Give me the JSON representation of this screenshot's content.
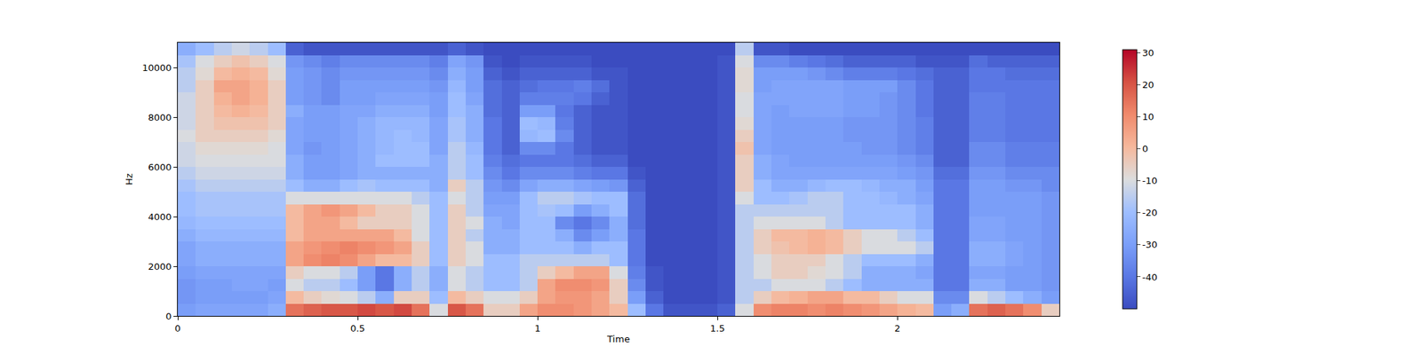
{
  "chart_data": {
    "type": "heatmap",
    "x_label": "Time",
    "y_label": "Hz",
    "xlim": [
      0,
      2.45
    ],
    "xticks": [
      0,
      0.5,
      1,
      1.5,
      2
    ],
    "ylim": [
      0,
      11000
    ],
    "yticks": [
      0,
      2000,
      4000,
      6000,
      8000,
      10000
    ],
    "zlim": [
      -50,
      31
    ],
    "zticks": [
      -40,
      -30,
      -20,
      -10,
      0,
      10,
      20,
      30
    ],
    "x": [
      0.025,
      0.075,
      0.125,
      0.175,
      0.225,
      0.275,
      0.325,
      0.375,
      0.425,
      0.475,
      0.525,
      0.575,
      0.625,
      0.675,
      0.725,
      0.775,
      0.825,
      0.875,
      0.925,
      0.975,
      1.025,
      1.075,
      1.125,
      1.175,
      1.225,
      1.275,
      1.325,
      1.375,
      1.425,
      1.475,
      1.525,
      1.575,
      1.625,
      1.675,
      1.725,
      1.775,
      1.825,
      1.875,
      1.925,
      1.975,
      2.025,
      2.075,
      2.125,
      2.175,
      2.225,
      2.275,
      2.325,
      2.375,
      2.425
    ],
    "y": [
      250,
      750,
      1250,
      1750,
      2250,
      2750,
      3250,
      3750,
      4250,
      4750,
      5250,
      5750,
      6250,
      6750,
      7250,
      7750,
      8250,
      8750,
      9250,
      9750,
      10250,
      10750
    ],
    "z": [
      [
        -30,
        -28,
        -28,
        -28,
        -28,
        -25,
        15,
        18,
        20,
        20,
        22,
        20,
        22,
        15,
        -10,
        20,
        15,
        -5,
        -5,
        5,
        10,
        10,
        8,
        5,
        0,
        -20,
        -40,
        -48,
        -48,
        -48,
        -45,
        -10,
        10,
        12,
        12,
        10,
        12,
        10,
        8,
        5,
        2,
        0,
        -30,
        -25,
        15,
        18,
        15,
        10,
        -5
      ],
      [
        -32,
        -30,
        -30,
        -30,
        -30,
        -28,
        0,
        -5,
        -8,
        -10,
        -15,
        -25,
        -5,
        -5,
        -20,
        0,
        -5,
        -10,
        -10,
        -5,
        5,
        8,
        8,
        5,
        -5,
        -30,
        -45,
        -50,
        -50,
        -50,
        -48,
        -15,
        -5,
        0,
        2,
        5,
        5,
        0,
        0,
        -5,
        -10,
        -10,
        -35,
        -35,
        -10,
        -15,
        -20,
        -25,
        -30
      ],
      [
        -32,
        -30,
        -30,
        -28,
        -28,
        -30,
        -10,
        -15,
        -15,
        -20,
        -30,
        -40,
        -25,
        -15,
        -25,
        -10,
        -15,
        -20,
        -20,
        -15,
        5,
        10,
        10,
        8,
        -5,
        -35,
        -48,
        -50,
        -50,
        -50,
        -48,
        -15,
        -15,
        -10,
        -10,
        -10,
        -15,
        -20,
        -25,
        -25,
        -25,
        -25,
        -40,
        -40,
        -25,
        -25,
        -30,
        -30,
        -32
      ],
      [
        -30,
        -28,
        -28,
        -28,
        -28,
        -28,
        -5,
        -10,
        -10,
        -15,
        -30,
        -40,
        -25,
        -15,
        -25,
        -10,
        -15,
        -20,
        -20,
        -15,
        -5,
        0,
        5,
        5,
        -10,
        -38,
        -48,
        -50,
        -50,
        -50,
        -48,
        -15,
        -10,
        -5,
        -5,
        -8,
        -10,
        -15,
        -25,
        -25,
        -25,
        -28,
        -40,
        -40,
        -28,
        -28,
        -30,
        -30,
        -32
      ],
      [
        -28,
        -25,
        -25,
        -25,
        -25,
        -25,
        5,
        10,
        12,
        10,
        5,
        0,
        0,
        -5,
        -20,
        -5,
        -10,
        -20,
        -20,
        -15,
        -15,
        -15,
        -15,
        -15,
        -20,
        -40,
        -50,
        -50,
        -50,
        -50,
        -48,
        -15,
        -10,
        -5,
        -5,
        -5,
        -10,
        -15,
        -20,
        -20,
        -20,
        -25,
        -40,
        -40,
        -25,
        -25,
        -28,
        -30,
        -32
      ],
      [
        -28,
        -25,
        -25,
        -25,
        -25,
        -25,
        5,
        8,
        10,
        12,
        10,
        8,
        5,
        -5,
        -20,
        -5,
        -10,
        -25,
        -25,
        -20,
        -20,
        -20,
        -25,
        -20,
        -20,
        -40,
        -50,
        -50,
        -50,
        -50,
        -48,
        -15,
        -5,
        -2,
        0,
        2,
        0,
        -5,
        -10,
        -10,
        -10,
        -15,
        -40,
        -40,
        -25,
        -25,
        -28,
        -30,
        -32
      ],
      [
        -25,
        -22,
        -22,
        -22,
        -22,
        -22,
        0,
        5,
        5,
        5,
        5,
        5,
        0,
        -10,
        -20,
        -5,
        -15,
        -25,
        -25,
        -20,
        -20,
        -25,
        -35,
        -30,
        -25,
        -40,
        -50,
        -50,
        -50,
        -50,
        -48,
        -15,
        -5,
        0,
        0,
        2,
        0,
        -5,
        -10,
        -10,
        -15,
        -20,
        -40,
        -40,
        -28,
        -28,
        -30,
        -30,
        -32
      ],
      [
        -22,
        -20,
        -20,
        -20,
        -20,
        -20,
        0,
        5,
        5,
        0,
        -5,
        -5,
        -5,
        -10,
        -20,
        -5,
        -10,
        -25,
        -28,
        -20,
        -20,
        -35,
        -40,
        -35,
        -25,
        -42,
        -50,
        -50,
        -50,
        -50,
        -48,
        -15,
        -10,
        -10,
        -10,
        -10,
        -15,
        -20,
        -20,
        -20,
        -20,
        -25,
        -40,
        -40,
        -28,
        -28,
        -30,
        -30,
        -32
      ],
      [
        -20,
        -18,
        -18,
        -18,
        -18,
        -18,
        0,
        5,
        8,
        5,
        0,
        -5,
        -5,
        -10,
        -20,
        -5,
        -15,
        -28,
        -28,
        -20,
        -18,
        -20,
        -30,
        -25,
        -20,
        -42,
        -50,
        -50,
        -50,
        -50,
        -48,
        -15,
        -15,
        -15,
        -15,
        -15,
        -15,
        -20,
        -20,
        -20,
        -20,
        -25,
        -40,
        -40,
        -30,
        -30,
        -30,
        -30,
        -32
      ],
      [
        -20,
        -18,
        -18,
        -18,
        -18,
        -18,
        -10,
        -10,
        -10,
        -10,
        -10,
        -10,
        -10,
        -15,
        -20,
        -10,
        -15,
        -30,
        -30,
        -20,
        -15,
        -15,
        -18,
        -20,
        -20,
        -42,
        -50,
        -50,
        -50,
        -50,
        -48,
        -10,
        -20,
        -20,
        -18,
        -15,
        -15,
        -20,
        -20,
        -22,
        -25,
        -28,
        -40,
        -40,
        -30,
        -30,
        -30,
        -30,
        -32
      ],
      [
        -18,
        -15,
        -15,
        -15,
        -15,
        -15,
        -20,
        -25,
        -25,
        -20,
        -18,
        -20,
        -20,
        -20,
        -25,
        -5,
        -15,
        -32,
        -35,
        -28,
        -25,
        -25,
        -28,
        -30,
        -32,
        -45,
        -50,
        -50,
        -50,
        -50,
        -48,
        -5,
        -20,
        -25,
        -25,
        -22,
        -20,
        -20,
        -22,
        -25,
        -25,
        -30,
        -40,
        -40,
        -30,
        -30,
        -32,
        -32,
        -35
      ],
      [
        -15,
        -12,
        -12,
        -12,
        -12,
        -12,
        -25,
        -30,
        -30,
        -28,
        -25,
        -25,
        -25,
        -25,
        -25,
        -15,
        -20,
        -35,
        -40,
        -35,
        -35,
        -35,
        -38,
        -40,
        -40,
        -48,
        -50,
        -50,
        -50,
        -50,
        -48,
        -5,
        -25,
        -28,
        -28,
        -28,
        -28,
        -28,
        -28,
        -28,
        -30,
        -32,
        -42,
        -42,
        -32,
        -32,
        -35,
        -35,
        -35
      ],
      [
        -12,
        -10,
        -10,
        -10,
        -10,
        -10,
        -25,
        -30,
        -30,
        -28,
        -25,
        -20,
        -20,
        -20,
        -25,
        -15,
        -20,
        -38,
        -42,
        -40,
        -40,
        -40,
        -42,
        -45,
        -45,
        -50,
        -50,
        -50,
        -50,
        -50,
        -48,
        -5,
        -25,
        -28,
        -30,
        -30,
        -30,
        -30,
        -30,
        -30,
        -32,
        -35,
        -45,
        -45,
        -35,
        -35,
        -38,
        -38,
        -38
      ],
      [
        -12,
        -8,
        -8,
        -8,
        -8,
        -10,
        -28,
        -32,
        -30,
        -28,
        -25,
        -22,
        -20,
        -20,
        -28,
        -15,
        -22,
        -40,
        -45,
        -35,
        -35,
        -40,
        -45,
        -48,
        -48,
        -50,
        -50,
        -50,
        -50,
        -50,
        -48,
        -2,
        -28,
        -30,
        -30,
        -30,
        -30,
        -30,
        -32,
        -32,
        -35,
        -38,
        -45,
        -45,
        -35,
        -35,
        -38,
        -38,
        -38
      ],
      [
        -10,
        -5,
        -5,
        -5,
        -5,
        -8,
        -28,
        -30,
        -30,
        -28,
        -25,
        -22,
        -20,
        -22,
        -28,
        -18,
        -25,
        -40,
        -45,
        -22,
        -20,
        -35,
        -45,
        -48,
        -48,
        -50,
        -50,
        -50,
        -50,
        -50,
        -48,
        -5,
        -28,
        -30,
        -30,
        -30,
        -30,
        -32,
        -32,
        -32,
        -35,
        -38,
        -45,
        -45,
        -38,
        -38,
        -40,
        -40,
        -40
      ],
      [
        -12,
        -5,
        -2,
        -2,
        -2,
        -5,
        -28,
        -30,
        -30,
        -28,
        -25,
        -22,
        -22,
        -22,
        -28,
        -18,
        -25,
        -40,
        -45,
        -20,
        -22,
        -38,
        -45,
        -48,
        -48,
        -50,
        -50,
        -50,
        -50,
        -50,
        -48,
        -8,
        -28,
        -30,
        -30,
        -30,
        -30,
        -32,
        -32,
        -32,
        -35,
        -38,
        -45,
        -45,
        -38,
        -38,
        -40,
        -40,
        -40
      ],
      [
        -12,
        -5,
        0,
        2,
        0,
        -5,
        -25,
        -30,
        -30,
        -28,
        -28,
        -25,
        -25,
        -25,
        -30,
        -20,
        -25,
        -42,
        -45,
        -30,
        -30,
        -40,
        -45,
        -48,
        -48,
        -50,
        -50,
        -50,
        -50,
        -50,
        -48,
        -10,
        -28,
        -30,
        -28,
        -28,
        -28,
        -30,
        -30,
        -32,
        -35,
        -40,
        -45,
        -45,
        -38,
        -38,
        -40,
        -40,
        -40
      ],
      [
        -12,
        -5,
        2,
        5,
        2,
        -5,
        -30,
        -32,
        -35,
        -30,
        -30,
        -28,
        -28,
        -28,
        -30,
        -20,
        -28,
        -42,
        -45,
        -38,
        -38,
        -38,
        -40,
        -45,
        -48,
        -50,
        -50,
        -50,
        -50,
        -50,
        -48,
        -10,
        -28,
        -28,
        -28,
        -28,
        -28,
        -30,
        -30,
        -32,
        -35,
        -40,
        -45,
        -45,
        -38,
        -38,
        -40,
        -40,
        -40
      ],
      [
        -15,
        -5,
        5,
        5,
        2,
        -5,
        -30,
        -32,
        -35,
        -30,
        -30,
        -30,
        -30,
        -30,
        -32,
        -22,
        -30,
        -42,
        -45,
        -42,
        -40,
        -40,
        -38,
        -42,
        -48,
        -50,
        -50,
        -50,
        -50,
        -50,
        -48,
        -8,
        -30,
        -28,
        -28,
        -28,
        -28,
        -30,
        -30,
        -30,
        -35,
        -40,
        -45,
        -45,
        -40,
        -40,
        -40,
        -40,
        -40
      ],
      [
        -15,
        -8,
        0,
        2,
        0,
        -8,
        -30,
        -32,
        -35,
        -32,
        -32,
        -32,
        -32,
        -32,
        -35,
        -25,
        -30,
        -45,
        -48,
        -45,
        -45,
        -45,
        -45,
        -48,
        -48,
        -50,
        -50,
        -50,
        -50,
        -50,
        -48,
        -8,
        -30,
        -30,
        -30,
        -32,
        -35,
        -38,
        -38,
        -38,
        -40,
        -42,
        -45,
        -45,
        -40,
        -40,
        -42,
        -42,
        -42
      ],
      [
        -18,
        -10,
        -5,
        -2,
        -5,
        -10,
        -32,
        -35,
        -38,
        -35,
        -35,
        -35,
        -35,
        -35,
        -38,
        -28,
        -32,
        -48,
        -50,
        -48,
        -48,
        -48,
        -48,
        -50,
        -50,
        -50,
        -50,
        -50,
        -50,
        -50,
        -48,
        -10,
        -35,
        -35,
        -38,
        -40,
        -42,
        -45,
        -45,
        -45,
        -45,
        -48,
        -48,
        -48,
        -42,
        -45,
        -45,
        -45,
        -45
      ],
      [
        -25,
        -20,
        -15,
        -12,
        -15,
        -20,
        -45,
        -48,
        -48,
        -48,
        -48,
        -48,
        -48,
        -48,
        -48,
        -45,
        -48,
        -50,
        -50,
        -50,
        -50,
        -50,
        -50,
        -50,
        -50,
        -50,
        -50,
        -50,
        -50,
        -50,
        -50,
        -15,
        -48,
        -48,
        -50,
        -50,
        -50,
        -50,
        -50,
        -50,
        -50,
        -50,
        -50,
        -50,
        -50,
        -50,
        -50,
        -50,
        -50
      ]
    ]
  }
}
